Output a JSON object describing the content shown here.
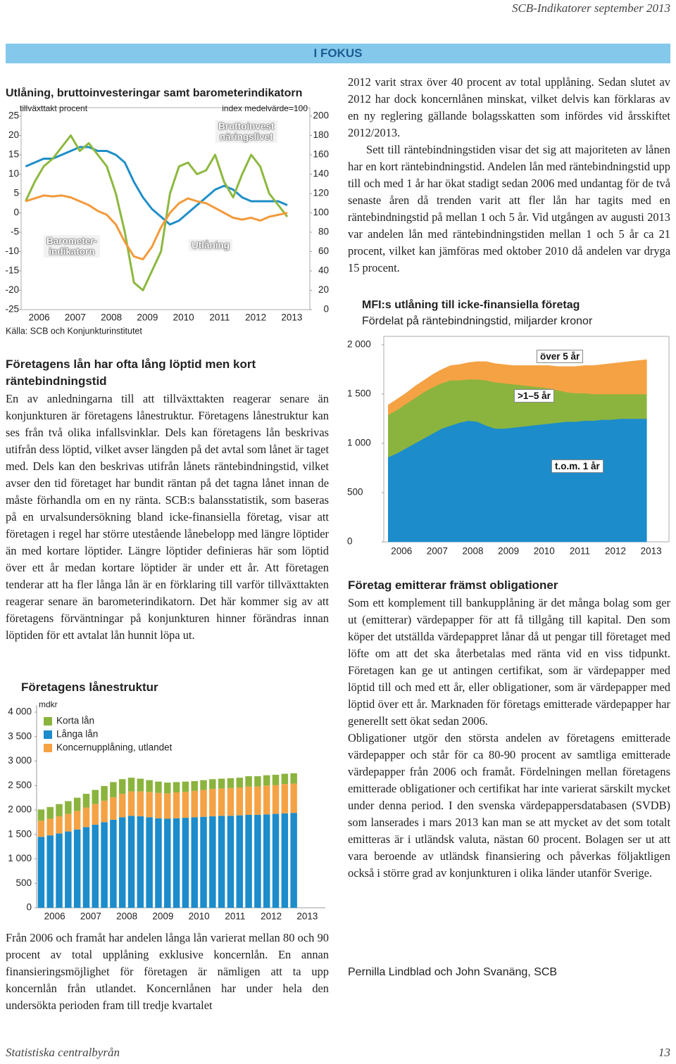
{
  "header": "SCB-Indikatorer september 2013",
  "banner": "I FOKUS",
  "chart_data": [
    {
      "type": "line",
      "title": "Utlåning, bruttoinvesteringar samt barometerindikatorn",
      "y_label": "tillväxttakt procent",
      "y2_label": "index medelvärde=100",
      "source": "Källa: SCB och Konjunkturinstitutet",
      "categories": [
        "2006",
        null,
        null,
        null,
        "2007",
        null,
        null,
        null,
        "2008",
        null,
        null,
        null,
        "2009",
        null,
        null,
        null,
        "2010",
        null,
        null,
        null,
        "2011",
        null,
        null,
        null,
        "2012",
        null,
        null,
        null,
        "2013",
        null,
        null,
        null
      ],
      "ylim": [
        -25,
        25
      ],
      "yticks": [
        25,
        20,
        15,
        10,
        5,
        0,
        -5,
        -10,
        -15,
        -20,
        -25
      ],
      "y2lim": [
        0,
        200
      ],
      "y2ticks": [
        200,
        180,
        160,
        140,
        120,
        100,
        80,
        60,
        40,
        20,
        0
      ],
      "series": [
        {
          "name": "Utlåning",
          "color": "#1f8ec8",
          "values": [
            12,
            13,
            14,
            14,
            15,
            16,
            17,
            17,
            16,
            16,
            15,
            13,
            8,
            4,
            1,
            -1,
            -3,
            -2,
            0,
            2,
            4,
            6,
            7,
            6,
            4,
            3,
            3,
            3,
            3,
            2,
            null,
            null
          ]
        },
        {
          "name": "Bruttoinvest\nnäringslivet",
          "color": "#8cb83f",
          "values": [
            3,
            8,
            12,
            14,
            17,
            20,
            16,
            18,
            15,
            12,
            5,
            -5,
            -18,
            -20,
            -15,
            -10,
            5,
            12,
            13,
            10,
            11,
            15,
            8,
            4,
            10,
            15,
            12,
            5,
            2,
            -1,
            null,
            null
          ]
        },
        {
          "name": "Barometer-\nindikatorn",
          "color": "#f29a3b",
          "axis": "y2",
          "values": [
            112,
            115,
            118,
            117,
            118,
            116,
            112,
            108,
            102,
            98,
            88,
            70,
            55,
            52,
            65,
            85,
            100,
            110,
            115,
            112,
            110,
            105,
            100,
            95,
            93,
            95,
            92,
            96,
            98,
            100,
            null,
            null
          ]
        }
      ]
    },
    {
      "type": "area",
      "stacked": true,
      "title": "MFI:s utlåning till icke-finansiella företag",
      "subtitle": "Fördelat på räntebindningstid, miljarder kronor",
      "categories": [
        "2006",
        null,
        null,
        null,
        "2007",
        null,
        null,
        null,
        "2008",
        null,
        null,
        null,
        "2009",
        null,
        null,
        null,
        "2010",
        null,
        null,
        null,
        "2011",
        null,
        null,
        null,
        "2012",
        null,
        null,
        null,
        "2013",
        null,
        null,
        null
      ],
      "ylim": [
        0,
        2000
      ],
      "yticks": [
        {
          "value": 2000,
          "label": "2 000"
        },
        {
          "value": 1500,
          "label": "1 500"
        },
        {
          "value": 1000,
          "label": "1 000"
        },
        500,
        0
      ],
      "series": [
        {
          "name": "t.o.m. 1 år",
          "color": "#1c8ccb",
          "values": [
            860,
            900,
            950,
            1000,
            1050,
            1100,
            1150,
            1180,
            1210,
            1230,
            1220,
            1180,
            1150,
            1150,
            1160,
            1170,
            1180,
            1190,
            1200,
            1210,
            1220,
            1220,
            1230,
            1230,
            1240,
            1240,
            1250,
            1250,
            1250,
            1250,
            null,
            null
          ]
        },
        {
          "name": ">1–5 år",
          "color": "#8bb43e",
          "values": [
            430,
            440,
            450,
            460,
            470,
            470,
            460,
            460,
            430,
            420,
            430,
            460,
            470,
            460,
            440,
            420,
            400,
            380,
            360,
            330,
            300,
            290,
            280,
            270,
            260,
            260,
            250,
            250,
            250,
            250,
            null,
            null
          ]
        },
        {
          "name": "över 5 år",
          "color": "#f5a244",
          "values": [
            100,
            110,
            110,
            120,
            120,
            130,
            140,
            150,
            160,
            170,
            180,
            190,
            190,
            190,
            190,
            200,
            210,
            220,
            230,
            240,
            260,
            270,
            280,
            290,
            300,
            310,
            320,
            330,
            340,
            350,
            null,
            null
          ]
        }
      ]
    },
    {
      "type": "bar",
      "stacked": true,
      "title": "Företagens lånestruktur",
      "y_label": "mdkr",
      "categories": [
        "2006",
        null,
        null,
        null,
        "2007",
        null,
        null,
        null,
        "2008",
        null,
        null,
        null,
        "2009",
        null,
        null,
        null,
        "2010",
        null,
        null,
        null,
        "2011",
        null,
        null,
        null,
        "2012",
        null,
        null,
        null,
        "2013",
        null,
        null,
        null
      ],
      "ylim": [
        0,
        4000
      ],
      "yticks": [
        {
          "value": 4000,
          "label": "4 000"
        },
        {
          "value": 3500,
          "label": "3 500"
        },
        {
          "value": 3000,
          "label": "3 000"
        },
        {
          "value": 2500,
          "label": "2 500"
        },
        {
          "value": 2000,
          "label": "2 000"
        },
        {
          "value": 1500,
          "label": "1 500"
        },
        {
          "value": 1000,
          "label": "1 000"
        },
        500,
        0
      ],
      "series": [
        {
          "name": "Långa lån",
          "color": "#1c8ccb",
          "values": [
            1450,
            1480,
            1520,
            1560,
            1600,
            1650,
            1700,
            1750,
            1800,
            1850,
            1880,
            1870,
            1850,
            1830,
            1820,
            1830,
            1840,
            1850,
            1860,
            1870,
            1880,
            1880,
            1890,
            1900,
            1900,
            1910,
            1920,
            1930,
            1940,
            null,
            null,
            null
          ]
        },
        {
          "name": "Koncernupplåning, utlandet",
          "color": "#f5a244",
          "values": [
            330,
            340,
            350,
            360,
            380,
            400,
            420,
            440,
            460,
            480,
            500,
            510,
            520,
            520,
            520,
            530,
            530,
            540,
            550,
            560,
            560,
            570,
            570,
            580,
            580,
            590,
            590,
            600,
            600,
            null,
            null,
            null
          ]
        },
        {
          "name": "Korta lån",
          "color": "#8bb43e",
          "values": [
            230,
            240,
            250,
            260,
            270,
            280,
            290,
            300,
            310,
            300,
            280,
            260,
            240,
            230,
            220,
            210,
            210,
            200,
            200,
            200,
            200,
            200,
            200,
            210,
            210,
            210,
            210,
            210,
            210,
            null,
            null,
            null
          ]
        }
      ],
      "legend_order": [
        2,
        0,
        1
      ]
    }
  ],
  "left_column": {
    "heading": "Företagens lån har ofta lång löptid men kort räntebindningstid",
    "body": "En av anledningarna till att tillväxttakten reagerar senare än konjunkturen är företagens lånestruktur. Företagens lånestruktur kan ses från två olika infallsvinklar. Dels kan företagens lån beskrivas utifrån dess löptid, vilket avser längden på det avtal som lånet är taget med. Dels kan den beskrivas utifrån lånets räntebindningstid, vilket avser den tid företaget har bundit räntan på det tagna lånet innan de måste förhandla om en ny ränta. SCB:s balansstatistik, som baseras på en urvalsundersökning bland icke-finansiella företag, visar att företagen i regel har större utestående lånebelopp med längre löptider än med kortare löptider. Längre löptider definieras här som löptid över ett år medan kortare löptider är under ett år. Att företagen tenderar att ha fler långa lån är en förklaring till varför tillväxttakten reagerar senare än barometerindikatorn. Det här kommer sig av att företagens förväntningar på konjunkturen hinner förändras innan löptiden för ett avtalat lån hunnit löpa ut.",
    "closing": "Från 2006 och framåt har andelen långa lån varierat mellan 80 och 90 procent av total upplåning exklusive koncernlån. En annan finansieringsmöjlighet för företagen är nämligen att ta upp koncernlån från utlandet. Koncernlånen har under hela den undersökta perioden fram till tredje kvartalet"
  },
  "right_column": {
    "paragraphs": [
      "2012 varit strax över 40 procent av total upplåning. Sedan slutet av 2012 har dock koncernlånen minskat, vilket delvis kan förklaras av en ny reglering gällande bolagsskatten som infördes vid årsskiftet 2012/2013.",
      "Sett till räntebindningstiden visar det sig att majoriteten av lånen har en kort räntebindningstid. Andelen lån med räntebindningstid upp till och med 1 år har ökat stadigt sedan 2006 med undantag för de två senaste åren då trenden varit att fler lån har tagits med en räntebindningstid på mellan 1 och 5 år. Vid utgången av augusti 2013 var andelen lån med räntebindningstiden mellan 1 och 5 år ca 21 procent, vilket kan jämföras med oktober 2010 då andelen var dryga 15 procent."
    ],
    "heading": "Företag emitterar främst obligationer",
    "body": [
      "Som ett komplement till bankupplåning är det många bolag som ger ut (emitterar) värdepapper för att få tillgång till kapital. Den som köper det utställda värdepappret lånar då ut pengar till företaget med löfte om att det ska återbetalas med ränta vid en viss tidpunkt. Företagen kan ge ut antingen certifikat, som är värdepapper med löptid till och med ett år, eller obligationer, som är värdepapper med löptid över ett år. Marknaden för företags emitterade värdepapper har generellt sett ökat sedan 2006.",
      "Obligationer utgör den största andelen av företagens emitterade värdepapper och står för ca 80-90 procent av samtliga emitterade värdepapper från 2006 och framåt. Fördelningen mellan företagens emitterade obligationer och certifikat har inte varierat särskilt mycket under denna period. I den svenska värdepappersdatabasen (SVDB) som lanserades i mars 2013 kan man se att mycket av det som totalt emitteras är i utländsk valuta, nästan 60 procent. Bolagen ser ut att vara beroende av utländsk finansiering och påverkas följaktligen också i större grad av konjunkturen i olika länder utanför Sverige."
    ],
    "author": "Pernilla Lindblad och John Svanäng, SCB"
  },
  "footer": {
    "publisher": "Statistiska centralbyrån",
    "page": 13
  }
}
